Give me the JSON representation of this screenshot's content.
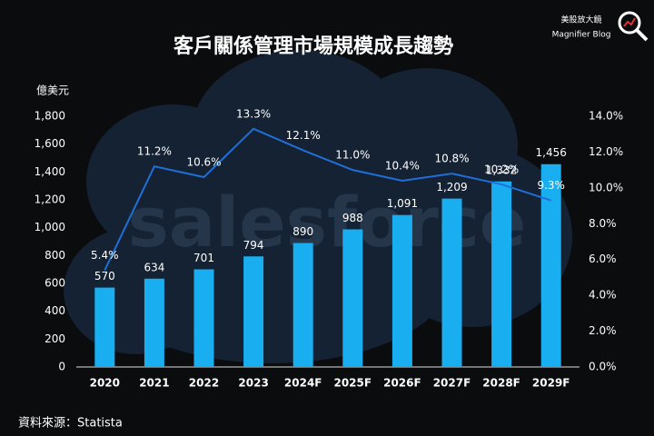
{
  "chart_data": {
    "type": "bar-line",
    "title": "客戶關係管理市場規模成長趨勢",
    "y_label": "億美元",
    "watermark": "salesforce",
    "categories": [
      "2020",
      "2021",
      "2022",
      "2023",
      "2024F",
      "2025F",
      "2026F",
      "2027F",
      "2028F",
      "2029F"
    ],
    "series": [
      {
        "type": "bar",
        "color": "#19aef0",
        "values": [
          570,
          634,
          701,
          794,
          890,
          988,
          1091,
          1209,
          1332,
          1456
        ],
        "value_labels": [
          "570",
          "634",
          "701",
          "794",
          "890",
          "988",
          "1,091",
          "1,209",
          "1,332",
          "1,456"
        ]
      },
      {
        "type": "line",
        "axis": "y2",
        "color": "#1f6fd6",
        "values": [
          5.4,
          11.2,
          10.6,
          13.3,
          12.1,
          11.0,
          10.4,
          10.8,
          10.2,
          9.3
        ],
        "value_labels": [
          "5.4%",
          "11.2%",
          "10.6%",
          "13.3%",
          "12.1%",
          "11.0%",
          "10.4%",
          "10.8%",
          "10.2%",
          "9.3%"
        ]
      }
    ],
    "ylim": [
      0,
      1800
    ],
    "yticks": [
      0,
      200,
      400,
      600,
      800,
      {
        "value": 1000,
        "label": "1,000"
      },
      {
        "value": 1200,
        "label": "1,200"
      },
      {
        "value": 1400,
        "label": "1,400"
      },
      {
        "value": 1600,
        "label": "1,600"
      },
      {
        "value": 1800,
        "label": "1,800"
      }
    ],
    "y2lim": [
      0,
      14
    ],
    "y2ticks": [
      {
        "value": 0,
        "label": "0.0%"
      },
      {
        "value": 2,
        "label": "2.0%"
      },
      {
        "value": 4,
        "label": "4.0%"
      },
      {
        "value": 6,
        "label": "6.0%"
      },
      {
        "value": 8,
        "label": "8.0%"
      },
      {
        "value": 10,
        "label": "10.0%"
      },
      {
        "value": 12,
        "label": "12.0%"
      },
      {
        "value": 14,
        "label": "14.0%"
      }
    ],
    "grid": false
  },
  "source": "資料來源：Statista",
  "logo": {
    "name": "美股放大鏡",
    "subtitle": "Magnifier Blog"
  }
}
